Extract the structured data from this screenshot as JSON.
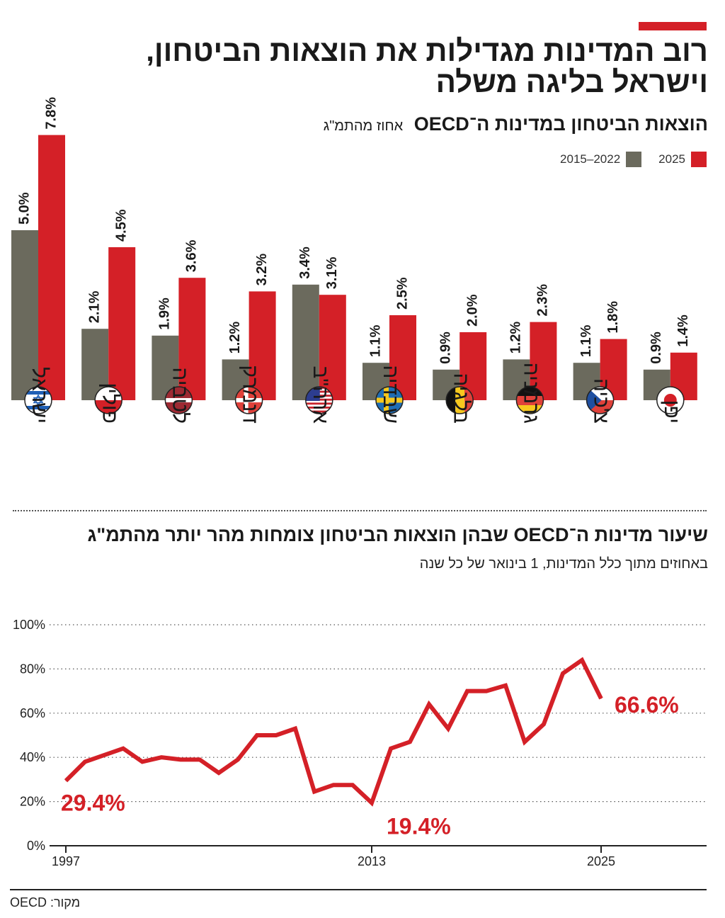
{
  "headline": {
    "line1": "רוב המדינות מגדילות את הוצאות הביטחון,",
    "line2": "וישראל בליגה משלה"
  },
  "chart1": {
    "title": "הוצאות הביטחון במדינות ה־OECD",
    "unit": "אחוז מהתמ\"ג",
    "legend": {
      "recent": "2025",
      "avg": "2022–2015"
    }
  },
  "chart2": {
    "title": "שיעור מדינות ה־OECD שבהן הוצאות הביטחון צומחות מהר יותר מהתמ\"ג",
    "caption": "באחוזים מתוך כלל המדינות, 1 בינואר של כל שנה"
  },
  "source": "מקור: OECD",
  "colors": {
    "red": "#d42027",
    "gray": "#6b6a5d",
    "accent": "#d42027"
  },
  "chart_data": [
    {
      "type": "bar",
      "categories": [
        "ישראל",
        "פולין",
        "לטביה",
        "דנמרק",
        "ארה\"ב",
        "שבדיה",
        "בלגיה",
        "גרמניה",
        "צ'כיה",
        "יפן"
      ],
      "flags": [
        "israel-flag",
        "poland-flag",
        "latvia-flag",
        "denmark-flag",
        "usa-flag",
        "sweden-flag",
        "belgium-flag",
        "germany-flag",
        "czech-flag",
        "japan-flag"
      ],
      "series": [
        {
          "name": "2022–2015",
          "color": "#6b6a5d",
          "values": [
            5.0,
            2.1,
            1.9,
            1.2,
            3.4,
            1.1,
            0.9,
            1.2,
            1.1,
            0.9
          ],
          "labels": [
            "5.0%",
            "2.1%",
            "1.9%",
            "1.2%",
            "3.4%",
            "1.1%",
            "0.9%",
            "1.2%",
            "1.1%",
            "0.9%"
          ]
        },
        {
          "name": "2025",
          "color": "#d42027",
          "values": [
            7.8,
            4.5,
            3.6,
            3.2,
            3.1,
            2.5,
            2.0,
            2.3,
            1.8,
            1.4
          ],
          "labels": [
            "7.8%",
            "4.5%",
            "3.6%",
            "3.2%",
            "3.1%",
            "2.5%",
            "2.0%",
            "2.3%",
            "1.8%",
            "1.4%"
          ]
        }
      ],
      "ylim": [
        0,
        8
      ],
      "grid": false,
      "legend": "top-right"
    },
    {
      "type": "line",
      "x": [
        1997,
        1998,
        1999,
        2000,
        2001,
        2002,
        2003,
        2004,
        2005,
        2006,
        2007,
        2008,
        2009,
        2010,
        2011,
        2012,
        2013,
        2014,
        2015,
        2016,
        2017,
        2018,
        2019,
        2020,
        2021,
        2022,
        2023,
        2024,
        2025
      ],
      "series": [
        {
          "color": "#d42027",
          "values": [
            29.4,
            38,
            41,
            44,
            38,
            40,
            39,
            39,
            33,
            39,
            50,
            50,
            53,
            24.5,
            27.5,
            27.5,
            19.4,
            44,
            47,
            64,
            53,
            70,
            70,
            72.5,
            47,
            55,
            78,
            84,
            66.6
          ]
        }
      ],
      "xticks": [
        "1997",
        "2013",
        "2025"
      ],
      "yticks": [
        "0%",
        "20%",
        "40%",
        "60%",
        "80%",
        "100%"
      ],
      "ylim": [
        0,
        100
      ],
      "grid": true,
      "annotations": [
        "29.4%",
        "19.4%",
        "66.6%"
      ]
    }
  ]
}
